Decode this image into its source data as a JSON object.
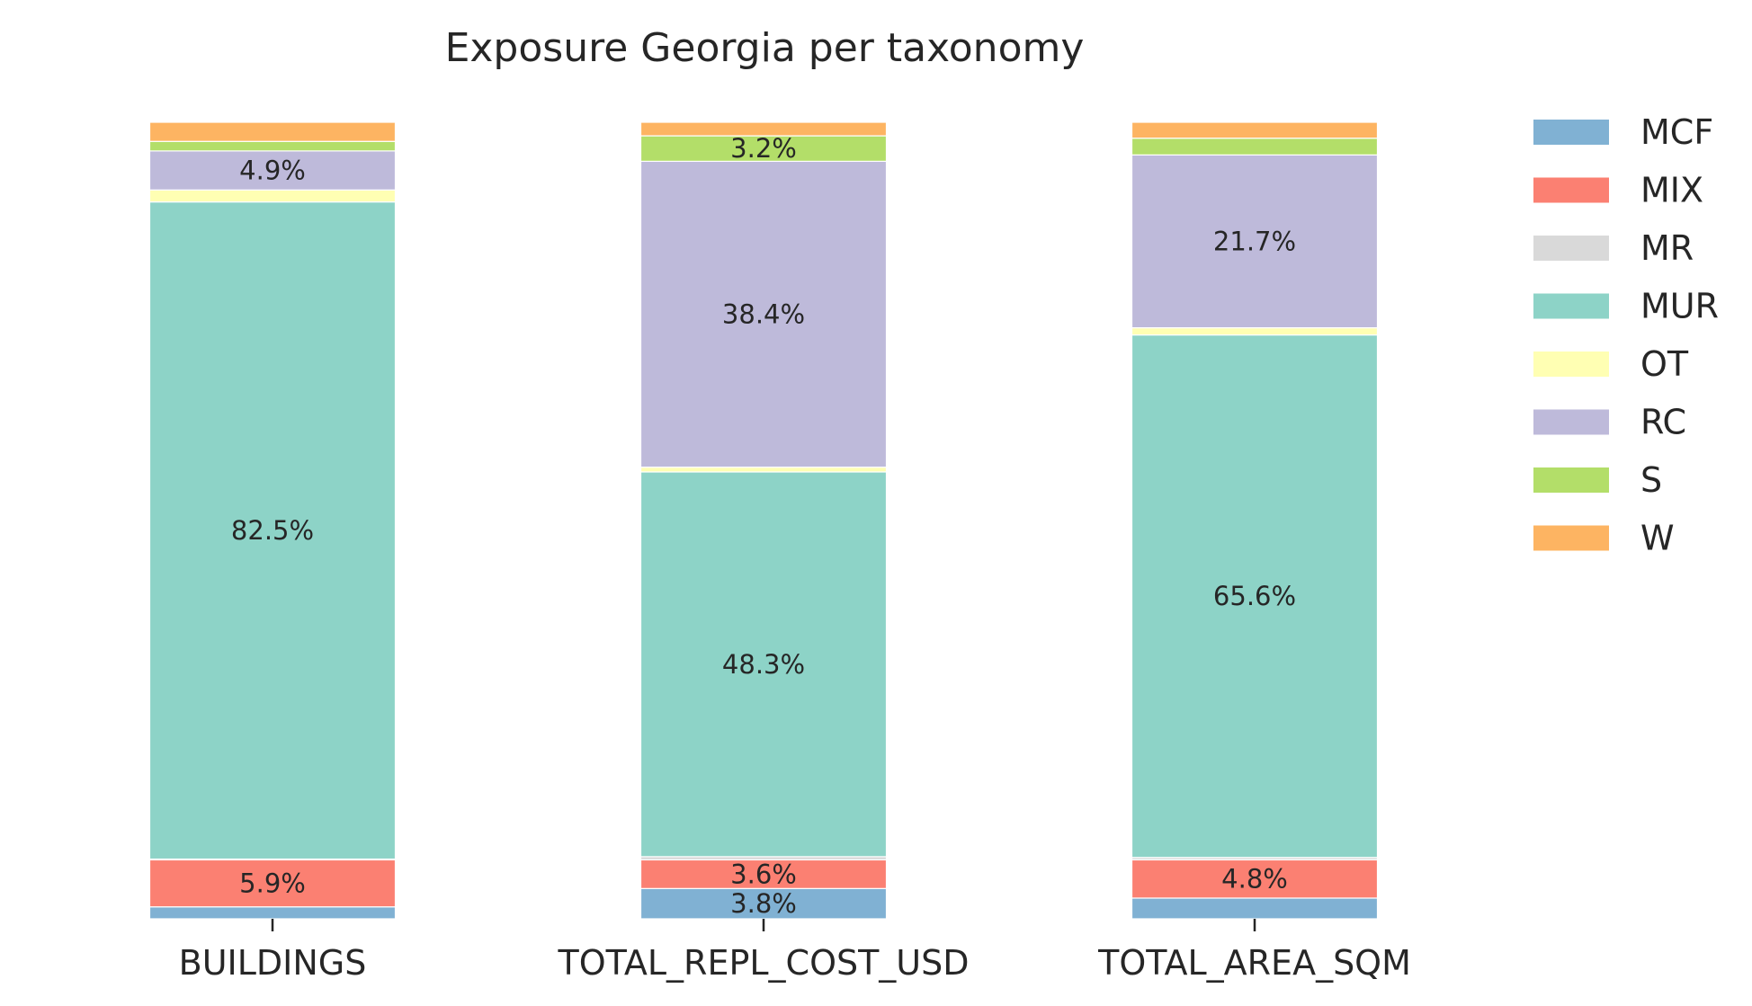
{
  "chart_data": {
    "type": "bar",
    "stacked": true,
    "normalized": true,
    "title": "Exposure Georgia per taxonomy",
    "categories": [
      "BUILDINGS",
      "TOTAL_REPL_COST_USD",
      "TOTAL_AREA_SQM"
    ],
    "series": [
      {
        "name": "MCF",
        "color": "#80b1d3",
        "values": [
          1.5,
          3.8,
          2.6
        ]
      },
      {
        "name": "MIX",
        "color": "#fb8072",
        "values": [
          5.9,
          3.6,
          4.8
        ]
      },
      {
        "name": "MR",
        "color": "#d9d9d9",
        "values": [
          0.1,
          0.4,
          0.3
        ]
      },
      {
        "name": "MUR",
        "color": "#8dd3c7",
        "values": [
          82.5,
          48.3,
          65.6
        ]
      },
      {
        "name": "OT",
        "color": "#ffffb3",
        "values": [
          1.5,
          0.6,
          0.9
        ]
      },
      {
        "name": "RC",
        "color": "#bebada",
        "values": [
          4.9,
          38.4,
          21.7
        ]
      },
      {
        "name": "S",
        "color": "#b3de69",
        "values": [
          1.2,
          3.2,
          2.1
        ]
      },
      {
        "name": "W",
        "color": "#fdb462",
        "values": [
          2.4,
          1.7,
          2.0
        ]
      }
    ],
    "data_labels": [
      [
        null,
        "5.9%",
        null,
        "82.5%",
        null,
        "4.9%",
        null,
        null
      ],
      [
        "3.8%",
        "3.6%",
        null,
        "48.3%",
        null,
        "38.4%",
        "3.2%",
        null
      ],
      [
        null,
        "4.8%",
        null,
        "65.6%",
        null,
        "21.7%",
        null,
        null
      ]
    ],
    "ylim": [
      0,
      100
    ],
    "legend": "top-right",
    "grid": false
  }
}
